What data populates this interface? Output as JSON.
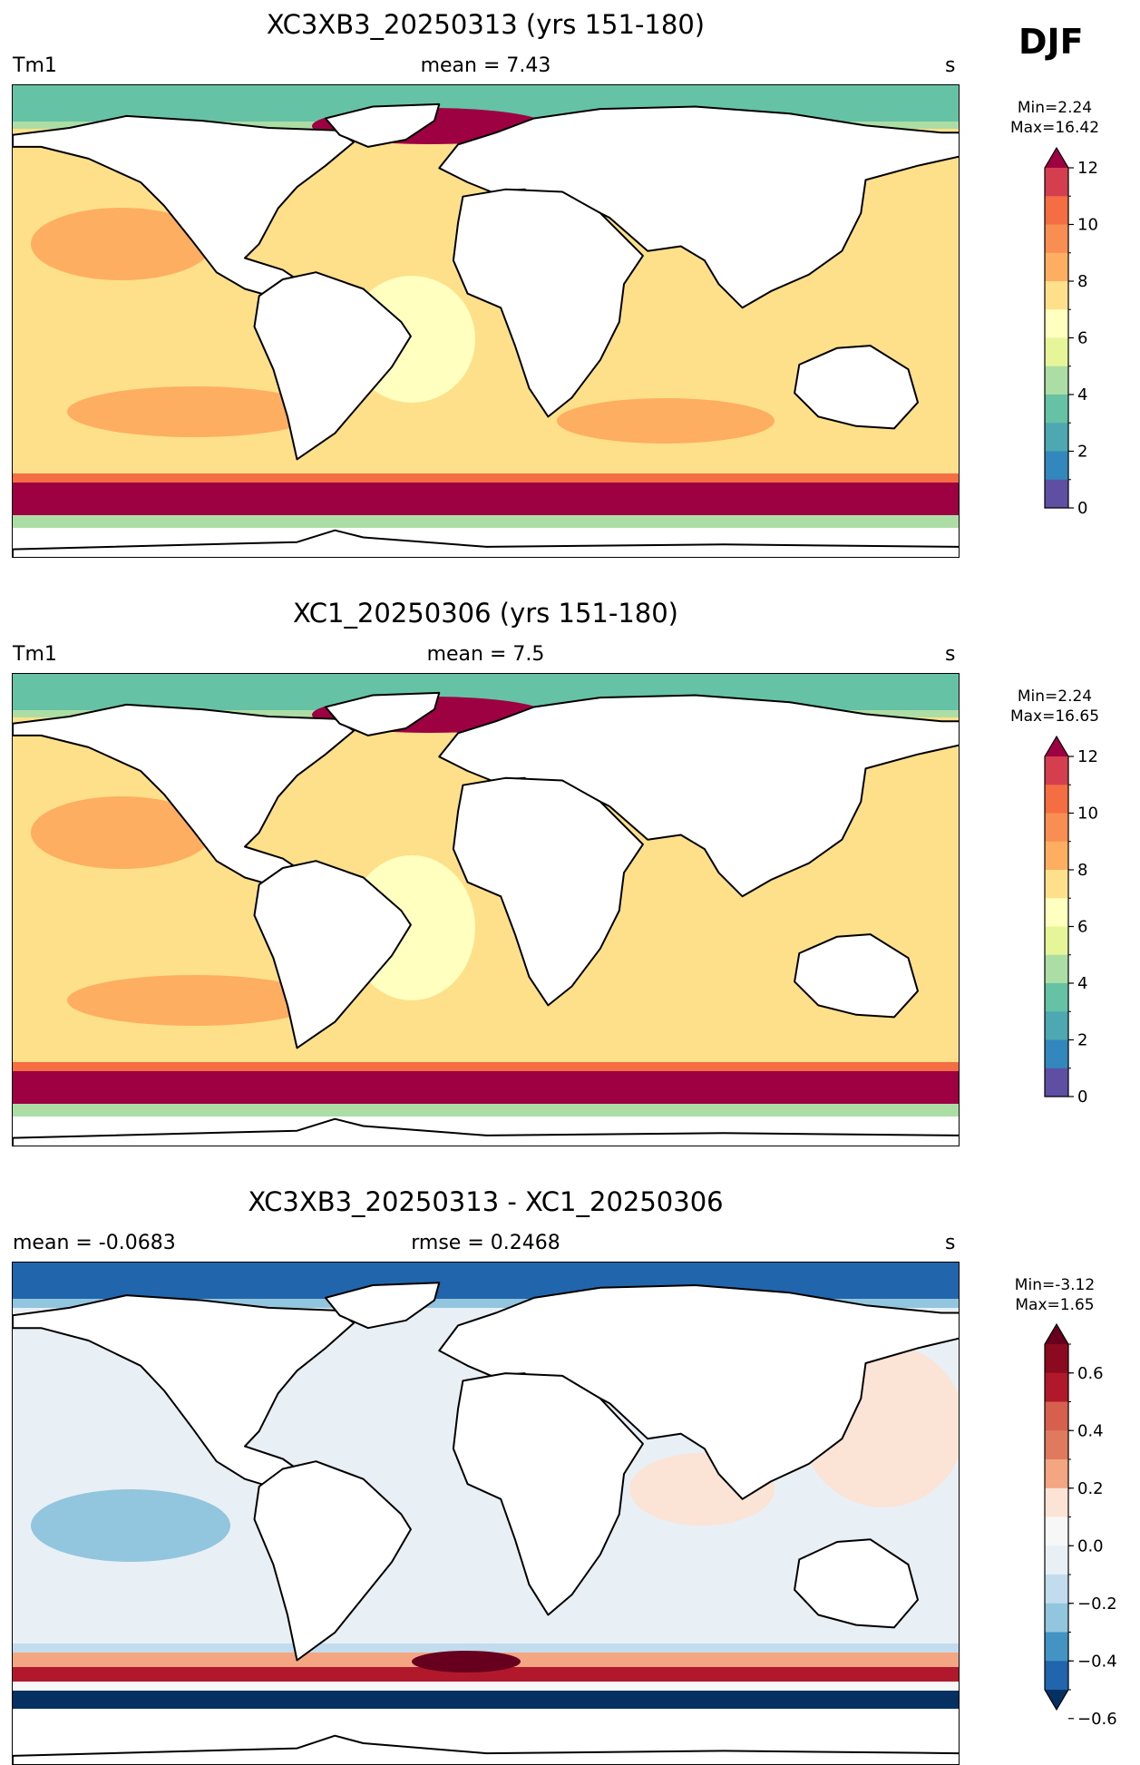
{
  "season": "DJF",
  "panels": [
    {
      "id": "test",
      "title": "XC3XB3_20250313 (yrs 151-180)",
      "left_label": "Tm1",
      "center_label": "mean = 7.43",
      "right_label": "s",
      "min_text": "Min=2.24",
      "max_text": "Max=16.42",
      "colormap": "RdYlBu_r",
      "colorbar": {
        "ticks": [
          "0",
          "2",
          "4",
          "6",
          "8",
          "10",
          "12"
        ],
        "levels": 13,
        "extend": "max"
      }
    },
    {
      "id": "ref",
      "title": "XC1_20250306 (yrs 151-180)",
      "left_label": "Tm1",
      "center_label": "mean = 7.5",
      "right_label": "s",
      "min_text": "Min=2.24",
      "max_text": "Max=16.65",
      "colormap": "RdYlBu_r",
      "colorbar": {
        "ticks": [
          "0",
          "2",
          "4",
          "6",
          "8",
          "10",
          "12"
        ],
        "levels": 13,
        "extend": "max"
      }
    },
    {
      "id": "diff",
      "title": "XC3XB3_20250313 - XC1_20250306",
      "left_label": "mean = -0.0683",
      "center_label": "rmse = 0.2468",
      "right_label": "s",
      "min_text": "Min=-3.12",
      "max_text": "Max=1.65",
      "colormap": "RdBu_r",
      "colorbar": {
        "ticks": [
          "0.6",
          "0.4",
          "0.2",
          "0.0",
          "−0.2",
          "−0.4",
          "−0.6"
        ],
        "levels": 14,
        "extend": "both"
      }
    }
  ],
  "colors": {
    "seq": [
      "#5e4fa2",
      "#3288bd",
      "#4ea8b1",
      "#66c2a5",
      "#abdda4",
      "#e6f598",
      "#ffffbf",
      "#fee08b",
      "#fdae61",
      "#f98e52",
      "#f46d43",
      "#d53e4f",
      "#9e0142"
    ],
    "div": [
      "#053061",
      "#2166ac",
      "#4393c3",
      "#92c5de",
      "#c2dced",
      "#e8f0f5",
      "#f7f7f7",
      "#fbe3d6",
      "#f4a582",
      "#e07a5f",
      "#d6604d",
      "#b2182b",
      "#8b0a20",
      "#67001f"
    ],
    "land": "#ffffff",
    "coast": "#000000"
  }
}
